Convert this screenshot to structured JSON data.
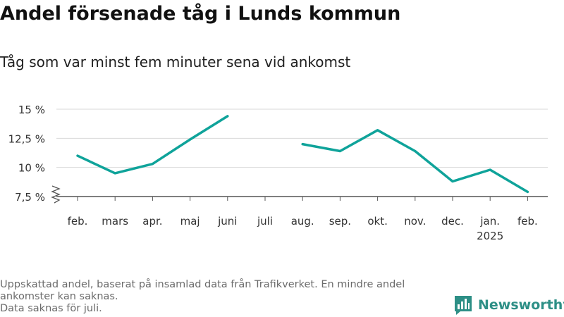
{
  "title": "Andel försenade tåg i Lunds kommun",
  "subtitle": "Tåg som var minst fem minuter sena vid ankomst",
  "footnote": {
    "line1": "Uppskattad andel, baserat på insamlad data från Trafikverket. En mindre andel ankomster kan saknas.",
    "line2": "Data saknas för juli."
  },
  "brand": {
    "name": "Newsworthy",
    "icon": "newsworthy-logo-icon"
  },
  "colors": {
    "line": "#0fa39a",
    "grid": "#d9d9d9",
    "axis": "#555555",
    "text": "#333333",
    "brand": "#2d8f86"
  },
  "chart_data": {
    "type": "line",
    "title": "Andel försenade tåg i Lunds kommun",
    "subtitle": "Tåg som var minst fem minuter sena vid ankomst",
    "categories": [
      "feb.",
      "mars",
      "apr.",
      "maj",
      "juni",
      "juli",
      "aug.",
      "sep.",
      "okt.",
      "nov.",
      "dec.",
      "jan.",
      "feb."
    ],
    "category_sublabels": [
      "",
      "",
      "",
      "",
      "",
      "",
      "",
      "",
      "",
      "",
      "",
      "2025",
      ""
    ],
    "values": [
      11.0,
      9.5,
      10.3,
      12.4,
      14.4,
      null,
      12.0,
      11.4,
      13.2,
      11.4,
      8.8,
      9.8,
      7.9
    ],
    "ylim": [
      7.5,
      15
    ],
    "yticks": [
      7.5,
      10,
      12.5,
      15
    ],
    "ytick_labels": [
      "7,5 %",
      "10 %",
      "12,5 %",
      "15 %"
    ],
    "axis_break": true,
    "grid": true,
    "legend": "none"
  }
}
